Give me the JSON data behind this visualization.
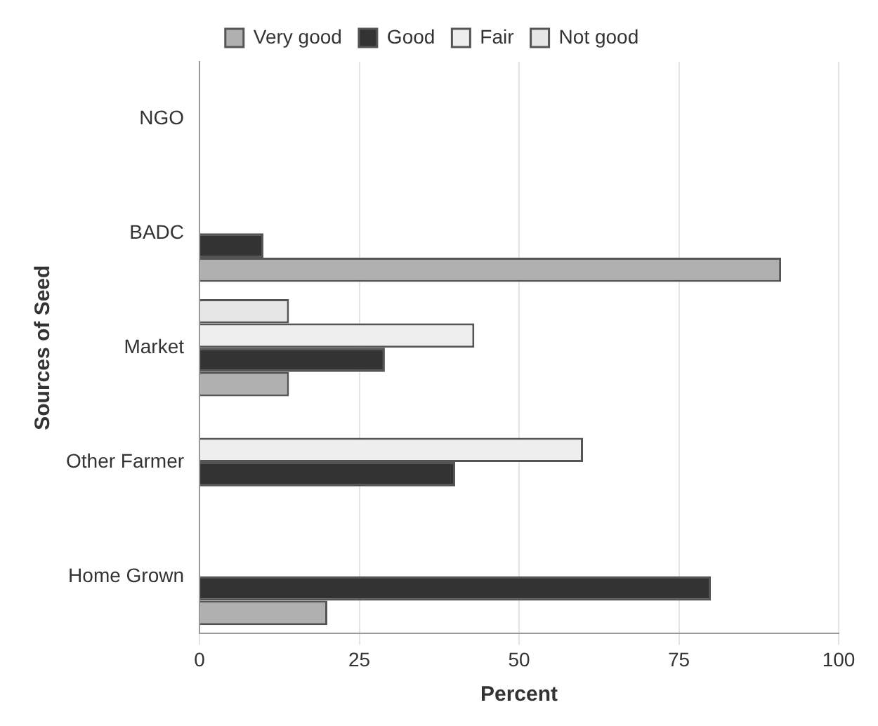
{
  "chart_data": {
    "type": "bar",
    "orientation": "horizontal",
    "categories": [
      "NGO",
      "BADC",
      "Market",
      "Other Farmer",
      "Home Grown"
    ],
    "series": [
      {
        "name": "Very good",
        "color": "#b0b0b0",
        "values": [
          0,
          91,
          14,
          null,
          20
        ]
      },
      {
        "name": "Good",
        "color": "#333333",
        "values": [
          0,
          10,
          29,
          40,
          80
        ]
      },
      {
        "name": "Fair",
        "color": "#eeeeee",
        "values": [
          0,
          null,
          43,
          60,
          null
        ]
      },
      {
        "name": "Not good",
        "color": "#e6e6e6",
        "values": [
          0,
          null,
          14,
          null,
          null
        ]
      }
    ],
    "xlabel": "Percent",
    "ylabel": "Sources of Seed",
    "xlim": [
      0,
      100
    ],
    "xticks": [
      0,
      25,
      50,
      75,
      100
    ],
    "grid": "x",
    "legend": "top"
  }
}
